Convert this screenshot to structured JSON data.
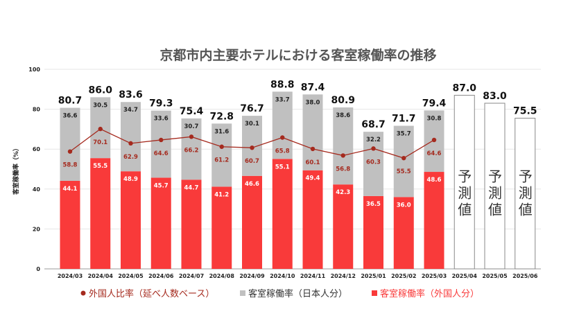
{
  "chart_data": {
    "type": "bar",
    "title": "京都市内主要ホテルにおける客室稼働率の推移",
    "ylabel": "客室稼働率（%）",
    "xlabel": "",
    "ylim": [
      0,
      100
    ],
    "yticks": [
      0,
      20,
      40,
      60,
      80,
      100
    ],
    "grid": true,
    "legend_position": "bottom",
    "categories": [
      "2024/03",
      "2024/04",
      "2024/05",
      "2024/06",
      "2024/07",
      "2024/08",
      "2024/09",
      "2024/10",
      "2024/11",
      "2024/12",
      "2025/01",
      "2025/02",
      "2025/03",
      "2025/04",
      "2025/05",
      "2025/06"
    ],
    "totals": [
      80.7,
      86.0,
      83.6,
      79.3,
      75.4,
      72.8,
      76.7,
      88.8,
      87.4,
      80.9,
      68.7,
      71.7,
      79.4,
      87.0,
      83.0,
      75.5
    ],
    "series": [
      {
        "name": "客室稼働率（外国人分）",
        "type": "bar",
        "color": "#f93a3a",
        "values": [
          44.1,
          55.5,
          48.9,
          45.7,
          44.7,
          41.2,
          46.6,
          55.1,
          49.4,
          42.3,
          36.5,
          36.0,
          48.6,
          null,
          null,
          null
        ]
      },
      {
        "name": "客室稼働率（日本人分）",
        "type": "bar",
        "color": "#c0c0c0",
        "values": [
          36.6,
          30.5,
          34.7,
          33.6,
          30.7,
          31.6,
          30.1,
          33.7,
          38.0,
          38.6,
          32.2,
          35.7,
          30.8,
          null,
          null,
          null
        ]
      },
      {
        "name": "外国人比率（延べ人数ベース）",
        "type": "line",
        "color": "#a52a1e",
        "values": [
          58.8,
          70.1,
          62.9,
          64.6,
          66.2,
          61.2,
          60.7,
          65.8,
          60.1,
          56.8,
          60.3,
          55.5,
          64.6,
          null,
          null,
          null
        ]
      }
    ],
    "forecast_label": "予測値",
    "forecast_categories": [
      "2025/04",
      "2025/05",
      "2025/06"
    ]
  }
}
